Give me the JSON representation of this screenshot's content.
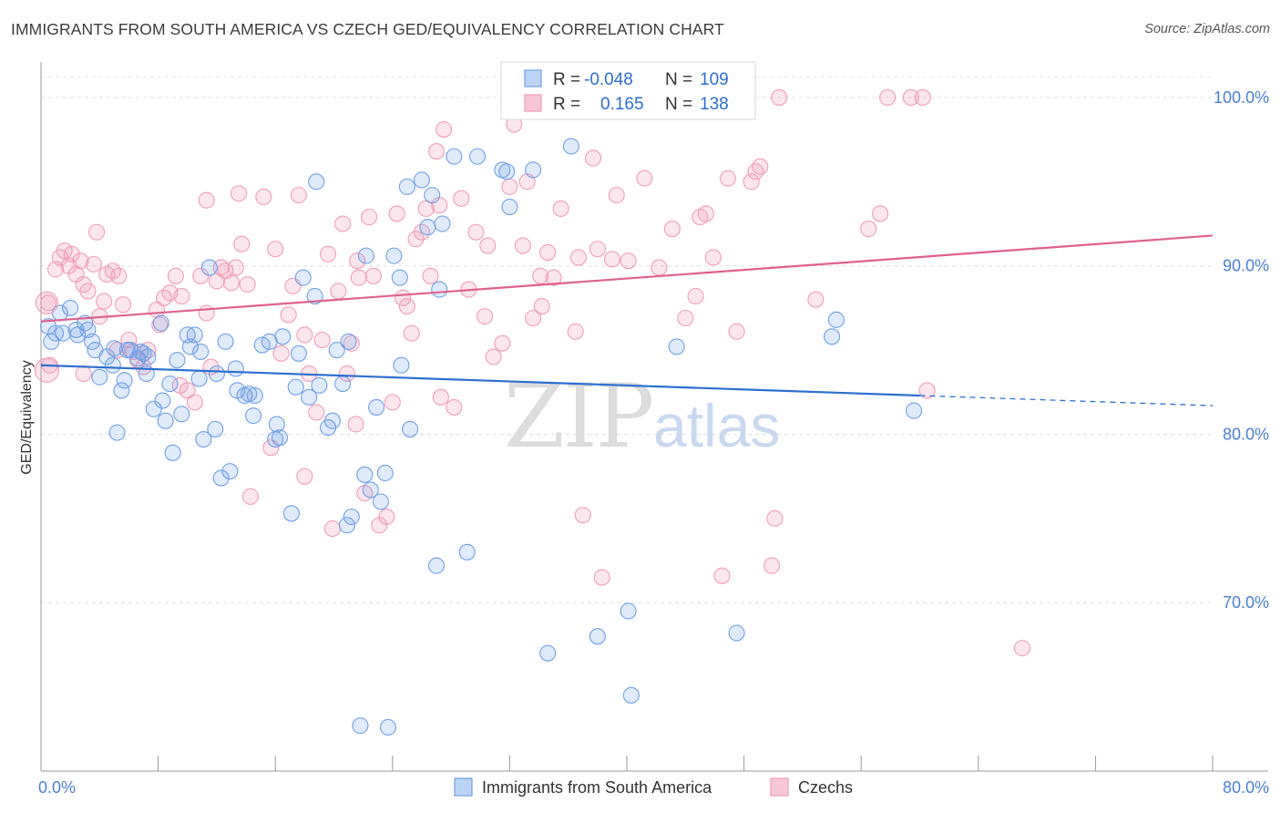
{
  "title": "IMMIGRANTS FROM SOUTH AMERICA VS CZECH GED/EQUIVALENCY CORRELATION CHART",
  "source": "Source: ZipAtlas.com",
  "watermark": {
    "part1": "ZIP",
    "part2": "atlas"
  },
  "chart_data": {
    "type": "scatter",
    "title": "IMMIGRANTS FROM SOUTH AMERICA VS CZECH GED/EQUIVALENCY CORRELATION CHART",
    "xlabel": "",
    "ylabel": "GED/Equivalency",
    "xlim": [
      0,
      80
    ],
    "ylim": [
      60,
      102
    ],
    "x_tick_labels": [
      "0.0%",
      "80.0%"
    ],
    "y_ticks": [
      70,
      80,
      90,
      100
    ],
    "y_tick_labels": [
      "70.0%",
      "80.0%",
      "90.0%",
      "100.0%"
    ],
    "grid": true,
    "legend_placement": "top-center",
    "series": [
      {
        "name": "Immigrants from South America",
        "color": "#6fa0e6",
        "line_color": "#2b6fd0",
        "r": "-0.048",
        "n": "109",
        "trend": {
          "x0": 0,
          "y0": 84.1,
          "x1": 60,
          "y1": 82.3,
          "x_dash_end": 80,
          "y_dash_end": 81.7
        },
        "points": [
          [
            0.5,
            86.4
          ],
          [
            0.7,
            85.5
          ],
          [
            1.0,
            86.0
          ],
          [
            1.3,
            87.2
          ],
          [
            1.5,
            86.0
          ],
          [
            2.0,
            87.5
          ],
          [
            2.4,
            86.2
          ],
          [
            2.5,
            85.9
          ],
          [
            3.0,
            86.6
          ],
          [
            3.2,
            86.2
          ],
          [
            3.5,
            85.5
          ],
          [
            3.7,
            85.0
          ],
          [
            4.0,
            83.4
          ],
          [
            4.5,
            84.6
          ],
          [
            5.0,
            85.1
          ],
          [
            5.2,
            80.1
          ],
          [
            5.5,
            82.6
          ],
          [
            5.7,
            83.2
          ],
          [
            5.9,
            85.0
          ],
          [
            6.1,
            85.0
          ],
          [
            6.6,
            84.5
          ],
          [
            6.8,
            84.9
          ],
          [
            7.0,
            84.8
          ],
          [
            7.2,
            83.6
          ],
          [
            7.7,
            81.5
          ],
          [
            8.2,
            86.6
          ],
          [
            8.3,
            82.0
          ],
          [
            8.5,
            80.8
          ],
          [
            8.8,
            83.0
          ],
          [
            9.0,
            78.9
          ],
          [
            9.3,
            84.4
          ],
          [
            9.6,
            81.2
          ],
          [
            10.0,
            85.9
          ],
          [
            10.2,
            85.2
          ],
          [
            10.5,
            85.9
          ],
          [
            10.9,
            84.9
          ],
          [
            11.1,
            79.7
          ],
          [
            11.5,
            89.9
          ],
          [
            11.9,
            80.3
          ],
          [
            12.0,
            83.6
          ],
          [
            12.3,
            77.4
          ],
          [
            12.6,
            85.5
          ],
          [
            12.9,
            77.8
          ],
          [
            13.3,
            83.9
          ],
          [
            13.4,
            82.6
          ],
          [
            13.9,
            82.3
          ],
          [
            14.2,
            82.4
          ],
          [
            14.5,
            81.1
          ],
          [
            14.6,
            82.3
          ],
          [
            15.1,
            85.3
          ],
          [
            15.6,
            85.5
          ],
          [
            16.0,
            79.7
          ],
          [
            16.3,
            79.8
          ],
          [
            16.5,
            85.8
          ],
          [
            17.1,
            75.3
          ],
          [
            17.4,
            82.8
          ],
          [
            17.6,
            84.8
          ],
          [
            17.9,
            89.3
          ],
          [
            18.3,
            82.2
          ],
          [
            18.7,
            88.2
          ],
          [
            18.8,
            95.0
          ],
          [
            19.0,
            82.9
          ],
          [
            19.6,
            80.4
          ],
          [
            19.9,
            80.8
          ],
          [
            20.2,
            85.0
          ],
          [
            20.6,
            83.0
          ],
          [
            20.9,
            74.6
          ],
          [
            21.2,
            75.1
          ],
          [
            21.8,
            62.7
          ],
          [
            22.1,
            77.6
          ],
          [
            22.2,
            90.6
          ],
          [
            22.5,
            76.7
          ],
          [
            22.9,
            81.6
          ],
          [
            23.2,
            76.0
          ],
          [
            23.5,
            77.7
          ],
          [
            24.1,
            90.6
          ],
          [
            24.5,
            89.3
          ],
          [
            24.6,
            84.1
          ],
          [
            25.0,
            94.7
          ],
          [
            25.2,
            80.3
          ],
          [
            26.0,
            95.1
          ],
          [
            26.4,
            92.3
          ],
          [
            26.7,
            94.2
          ],
          [
            27.0,
            72.2
          ],
          [
            27.2,
            88.6
          ],
          [
            27.4,
            92.5
          ],
          [
            28.2,
            96.5
          ],
          [
            29.1,
            73.0
          ],
          [
            29.8,
            96.5
          ],
          [
            31.5,
            95.7
          ],
          [
            31.8,
            95.6
          ],
          [
            32.0,
            93.5
          ],
          [
            33.6,
            95.7
          ],
          [
            34.6,
            67.0
          ],
          [
            36.2,
            97.1
          ],
          [
            38.0,
            68.0
          ],
          [
            40.1,
            69.5
          ],
          [
            40.3,
            64.5
          ],
          [
            43.4,
            85.2
          ],
          [
            47.5,
            68.2
          ],
          [
            54.0,
            85.8
          ],
          [
            54.3,
            86.8
          ],
          [
            59.6,
            81.4
          ],
          [
            7.3,
            84.6
          ],
          [
            10.8,
            83.3
          ],
          [
            16.1,
            80.6
          ],
          [
            23.7,
            62.6
          ],
          [
            4.9,
            84.1
          ],
          [
            21.0,
            85.5
          ]
        ]
      },
      {
        "name": "Czechs",
        "color": "#f19bb8",
        "line_color": "#e0608e",
        "r": "0.165",
        "n": "138",
        "trend": {
          "x0": 0,
          "y0": 86.7,
          "x1": 80,
          "y1": 91.8
        },
        "points": [
          [
            0.5,
            87.8
          ],
          [
            0.6,
            84.1
          ],
          [
            1.0,
            89.8
          ],
          [
            1.3,
            90.5
          ],
          [
            1.6,
            90.9
          ],
          [
            1.9,
            90.0
          ],
          [
            2.1,
            90.7
          ],
          [
            2.4,
            89.5
          ],
          [
            2.7,
            90.3
          ],
          [
            2.9,
            88.9
          ],
          [
            3.2,
            88.5
          ],
          [
            3.6,
            90.1
          ],
          [
            4.0,
            87.0
          ],
          [
            4.3,
            87.9
          ],
          [
            4.5,
            89.5
          ],
          [
            4.9,
            89.7
          ],
          [
            5.3,
            89.4
          ],
          [
            5.6,
            87.7
          ],
          [
            6.0,
            85.6
          ],
          [
            6.3,
            84.9
          ],
          [
            6.6,
            84.4
          ],
          [
            7.0,
            84.0
          ],
          [
            7.3,
            85.0
          ],
          [
            7.9,
            87.4
          ],
          [
            8.1,
            86.5
          ],
          [
            8.4,
            88.1
          ],
          [
            8.8,
            88.4
          ],
          [
            9.2,
            89.4
          ],
          [
            9.6,
            88.2
          ],
          [
            10.0,
            82.6
          ],
          [
            10.5,
            81.9
          ],
          [
            10.9,
            89.4
          ],
          [
            11.3,
            87.2
          ],
          [
            11.6,
            84.0
          ],
          [
            12.0,
            89.1
          ],
          [
            12.3,
            89.9
          ],
          [
            12.6,
            89.7
          ],
          [
            13.0,
            89.0
          ],
          [
            13.3,
            89.9
          ],
          [
            13.7,
            91.3
          ],
          [
            14.1,
            88.9
          ],
          [
            14.3,
            76.3
          ],
          [
            15.2,
            94.1
          ],
          [
            15.7,
            79.2
          ],
          [
            16.0,
            91.0
          ],
          [
            16.4,
            84.8
          ],
          [
            16.9,
            87.1
          ],
          [
            17.2,
            88.8
          ],
          [
            17.6,
            94.2
          ],
          [
            18.0,
            85.9
          ],
          [
            18.3,
            83.6
          ],
          [
            18.8,
            81.3
          ],
          [
            19.2,
            85.6
          ],
          [
            19.6,
            90.7
          ],
          [
            19.9,
            74.4
          ],
          [
            20.3,
            88.5
          ],
          [
            20.6,
            92.5
          ],
          [
            20.9,
            83.6
          ],
          [
            21.2,
            85.4
          ],
          [
            21.6,
            90.3
          ],
          [
            21.7,
            89.3
          ],
          [
            22.1,
            76.5
          ],
          [
            22.4,
            92.9
          ],
          [
            22.7,
            89.4
          ],
          [
            23.1,
            74.6
          ],
          [
            23.6,
            75.1
          ],
          [
            24.0,
            81.9
          ],
          [
            24.3,
            93.1
          ],
          [
            24.7,
            88.1
          ],
          [
            25.0,
            87.6
          ],
          [
            25.3,
            86.0
          ],
          [
            25.6,
            91.6
          ],
          [
            26.0,
            92.0
          ],
          [
            26.3,
            93.4
          ],
          [
            26.6,
            89.4
          ],
          [
            27.0,
            96.8
          ],
          [
            27.2,
            93.6
          ],
          [
            27.5,
            98.1
          ],
          [
            28.2,
            81.6
          ],
          [
            28.7,
            94.0
          ],
          [
            29.2,
            88.6
          ],
          [
            29.7,
            92.0
          ],
          [
            30.3,
            87.0
          ],
          [
            30.9,
            84.6
          ],
          [
            31.5,
            85.4
          ],
          [
            32.0,
            94.7
          ],
          [
            32.3,
            98.4
          ],
          [
            32.9,
            91.2
          ],
          [
            33.2,
            95.0
          ],
          [
            33.6,
            86.9
          ],
          [
            34.1,
            89.4
          ],
          [
            34.6,
            90.8
          ],
          [
            35.0,
            89.3
          ],
          [
            35.5,
            93.4
          ],
          [
            36.0,
            100.0
          ],
          [
            36.7,
            90.5
          ],
          [
            37.0,
            75.2
          ],
          [
            37.7,
            96.4
          ],
          [
            38.0,
            91.0
          ],
          [
            38.3,
            71.5
          ],
          [
            39.0,
            90.4
          ],
          [
            39.3,
            94.2
          ],
          [
            40.1,
            90.3
          ],
          [
            41.2,
            95.2
          ],
          [
            42.2,
            89.9
          ],
          [
            43.1,
            92.2
          ],
          [
            44.0,
            86.9
          ],
          [
            45.0,
            92.9
          ],
          [
            45.4,
            93.1
          ],
          [
            45.9,
            90.5
          ],
          [
            46.5,
            71.6
          ],
          [
            46.9,
            95.2
          ],
          [
            47.5,
            86.1
          ],
          [
            48.5,
            95.0
          ],
          [
            48.8,
            95.6
          ],
          [
            49.1,
            95.9
          ],
          [
            49.9,
            72.2
          ],
          [
            50.4,
            100.0
          ],
          [
            52.9,
            88.0
          ],
          [
            56.5,
            92.2
          ],
          [
            57.3,
            93.1
          ],
          [
            57.8,
            100.0
          ],
          [
            59.4,
            100.0
          ],
          [
            60.2,
            100.0
          ],
          [
            60.5,
            82.6
          ],
          [
            67.0,
            67.3
          ],
          [
            3.8,
            92.0
          ],
          [
            9.5,
            82.9
          ],
          [
            13.5,
            94.3
          ],
          [
            27.3,
            82.2
          ],
          [
            30.5,
            91.2
          ],
          [
            44.7,
            88.2
          ],
          [
            50.1,
            75.0
          ],
          [
            36.5,
            86.1
          ],
          [
            18.0,
            77.5
          ],
          [
            11.3,
            93.9
          ],
          [
            21.5,
            80.6
          ],
          [
            5.2,
            85.0
          ],
          [
            2.9,
            83.6
          ],
          [
            34.2,
            87.6
          ]
        ]
      }
    ]
  },
  "legend": {
    "rows": [
      {
        "r_label": "R =",
        "r_value": "-0.048",
        "n_label": "N =",
        "n_value": "109"
      },
      {
        "r_label": "R =",
        "r_value": "0.165",
        "n_label": "N =",
        "n_value": "138"
      }
    ]
  },
  "bottom_legend": [
    "Immigrants from South America",
    "Czechs"
  ]
}
